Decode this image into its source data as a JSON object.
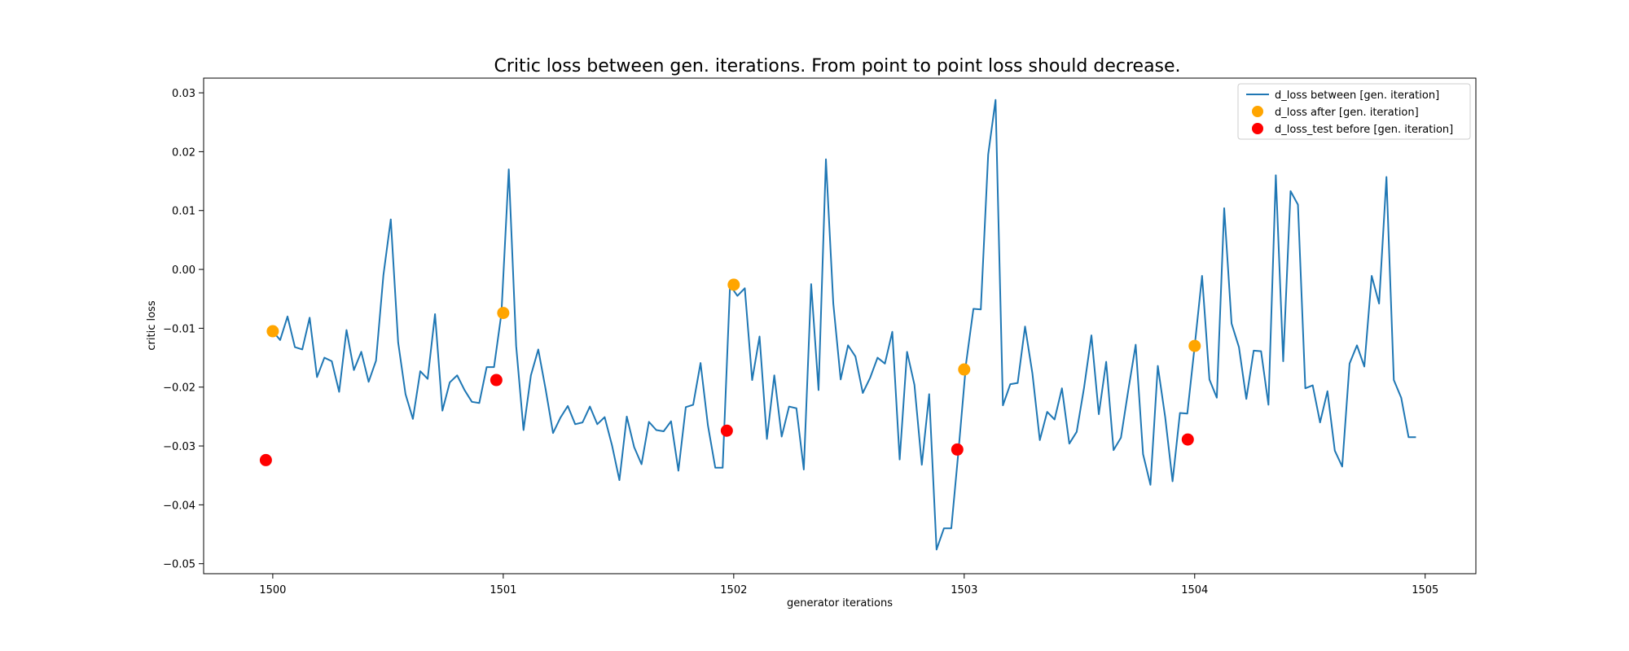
{
  "chart_data": {
    "type": "line",
    "title": "Critic loss between gen. iterations. From point to point loss should decrease.",
    "xlabel": "generator iterations",
    "ylabel": "critic loss",
    "xlim": [
      1499.7,
      1505.22
    ],
    "ylim": [
      -0.0517,
      0.0325
    ],
    "xticks": [
      1500,
      1501,
      1502,
      1503,
      1504,
      1505
    ],
    "yticks": [
      0.03,
      0.02,
      0.01,
      0.0,
      -0.01,
      -0.02,
      -0.03,
      -0.04,
      -0.05
    ],
    "ytick_labels": [
      "0.03",
      "0.02",
      "0.01",
      "0.00",
      "−0.01",
      "−0.02",
      "−0.03",
      "−0.04",
      "−0.05"
    ],
    "grid": false,
    "legend_position": "top-right",
    "colors": {
      "line": "#1f77b4",
      "after": "#ffa500",
      "test_before": "#ff0000"
    },
    "series": [
      {
        "name": "d_loss between [gen. iteration]",
        "kind": "line",
        "x": [
          1500.0,
          1500.032,
          1500.064,
          1500.096,
          1500.128,
          1500.16,
          1500.192,
          1500.224,
          1500.256,
          1500.288,
          1500.32,
          1500.352,
          1500.384,
          1500.416,
          1500.448,
          1500.48,
          1500.512,
          1500.544,
          1500.576,
          1500.608,
          1500.64,
          1500.672,
          1500.704,
          1500.736,
          1500.768,
          1500.8,
          1500.832,
          1500.864,
          1500.896,
          1500.928,
          1500.96,
          1500.992,
          1501.024,
          1501.056,
          1501.088,
          1501.12,
          1501.152,
          1501.184,
          1501.216,
          1501.248,
          1501.28,
          1501.312,
          1501.344,
          1501.376,
          1501.408,
          1501.44,
          1501.472,
          1501.504,
          1501.536,
          1501.568,
          1501.6,
          1501.632,
          1501.664,
          1501.696,
          1501.728,
          1501.76,
          1501.792,
          1501.824,
          1501.856,
          1501.888,
          1501.92,
          1501.952,
          1501.984,
          1502.016,
          1502.048,
          1502.08,
          1502.112,
          1502.144,
          1502.176,
          1502.208,
          1502.24,
          1502.272,
          1502.304,
          1502.336,
          1502.368,
          1502.4,
          1502.432,
          1502.464,
          1502.496,
          1502.528,
          1502.56,
          1502.592,
          1502.624,
          1502.656,
          1502.688,
          1502.72,
          1502.752,
          1502.784,
          1502.816,
          1502.848,
          1502.88,
          1502.912,
          1502.944,
          1502.976,
          1503.008,
          1503.04,
          1503.072,
          1503.104,
          1503.136,
          1503.168,
          1503.2,
          1503.232,
          1503.264,
          1503.296,
          1503.328,
          1503.36,
          1503.392,
          1503.424,
          1503.456,
          1503.488,
          1503.52,
          1503.552,
          1503.584,
          1503.616,
          1503.648,
          1503.68,
          1503.712,
          1503.744,
          1503.776,
          1503.808,
          1503.84,
          1503.872,
          1503.904,
          1503.936,
          1503.968,
          1504.0,
          1504.032,
          1504.064,
          1504.096,
          1504.128,
          1504.16,
          1504.192,
          1504.224,
          1504.256,
          1504.288,
          1504.32,
          1504.352,
          1504.384,
          1504.416,
          1504.448,
          1504.48,
          1504.512,
          1504.544,
          1504.576,
          1504.608,
          1504.64,
          1504.672,
          1504.704,
          1504.736,
          1504.768,
          1504.8,
          1504.832,
          1504.864,
          1504.896,
          1504.928,
          1504.96
        ],
        "y": [
          -0.0105,
          -0.012,
          -0.008,
          -0.0132,
          -0.0136,
          -0.0082,
          -0.0183,
          -0.015,
          -0.0156,
          -0.0208,
          -0.0103,
          -0.0171,
          -0.014,
          -0.0191,
          -0.0155,
          -0.001,
          0.0085,
          -0.0124,
          -0.0212,
          -0.0254,
          -0.0173,
          -0.0186,
          -0.0076,
          -0.024,
          -0.0192,
          -0.018,
          -0.0205,
          -0.0225,
          -0.0227,
          -0.0166,
          -0.0166,
          -0.0075,
          0.017,
          -0.013,
          -0.0273,
          -0.018,
          -0.0136,
          -0.0204,
          -0.0278,
          -0.0252,
          -0.0232,
          -0.0263,
          -0.026,
          -0.0233,
          -0.0263,
          -0.0251,
          -0.0299,
          -0.0358,
          -0.025,
          -0.0302,
          -0.0331,
          -0.0259,
          -0.0273,
          -0.0275,
          -0.0258,
          -0.0342,
          -0.0234,
          -0.023,
          -0.0159,
          -0.0265,
          -0.0337,
          -0.0337,
          -0.0027,
          -0.0045,
          -0.0032,
          -0.0188,
          -0.0114,
          -0.0288,
          -0.018,
          -0.0284,
          -0.0233,
          -0.0236,
          -0.034,
          -0.0025,
          -0.0205,
          0.0187,
          -0.0058,
          -0.0187,
          -0.0129,
          -0.0148,
          -0.021,
          -0.0184,
          -0.015,
          -0.016,
          -0.0106,
          -0.0323,
          -0.014,
          -0.0196,
          -0.0332,
          -0.0212,
          -0.0476,
          -0.044,
          -0.044,
          -0.0305,
          -0.016,
          -0.0067,
          -0.0068,
          0.0195,
          0.0288,
          -0.0231,
          -0.0195,
          -0.0193,
          -0.0097,
          -0.0177,
          -0.029,
          -0.0242,
          -0.0255,
          -0.0202,
          -0.0296,
          -0.0276,
          -0.0201,
          -0.0112,
          -0.0246,
          -0.0157,
          -0.0307,
          -0.0286,
          -0.0205,
          -0.0128,
          -0.0314,
          -0.0366,
          -0.0164,
          -0.0251,
          -0.036,
          -0.0244,
          -0.0245,
          -0.013,
          -0.0011,
          -0.0187,
          -0.0218,
          0.0104,
          -0.0092,
          -0.0132,
          -0.022,
          -0.0138,
          -0.0139,
          -0.023,
          0.016,
          -0.0156,
          0.0133,
          0.011,
          -0.0202,
          -0.0197,
          -0.026,
          -0.0207,
          -0.0308,
          -0.0335,
          -0.016,
          -0.0129,
          -0.0165,
          -0.0011,
          -0.0058,
          0.0157,
          -0.0188,
          -0.0218,
          -0.0285,
          -0.0285
        ]
      },
      {
        "name": "d_loss after [gen. iteration]",
        "kind": "scatter",
        "x": [
          1500.0,
          1501.0,
          1502.0,
          1503.0,
          1504.0
        ],
        "y": [
          -0.0105,
          -0.0074,
          -0.0026,
          -0.017,
          -0.013
        ]
      },
      {
        "name": "d_loss_test before [gen. iteration]",
        "kind": "scatter",
        "x": [
          1499.97,
          1500.97,
          1501.97,
          1502.97,
          1503.97
        ],
        "y": [
          -0.0324,
          -0.0188,
          -0.0274,
          -0.0306,
          -0.0289
        ]
      }
    ]
  }
}
